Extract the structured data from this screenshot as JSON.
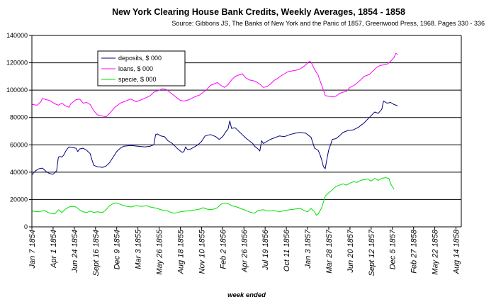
{
  "chart_data": {
    "type": "line",
    "title": "New York Clearing House Bank Credits, Weekly Averages, 1854 - 1858",
    "subtitle": "Source: Gibbons JS, The Banks of New York and the Panic of 1857, Greenwood Press, 1968. Pages 330 - 336",
    "xlabel": "week ended",
    "ylabel": "",
    "ylim": [
      0,
      140000
    ],
    "yticks": [
      "0",
      "20000",
      "40000",
      "60000",
      "80000",
      "100000",
      "120000",
      "140000"
    ],
    "grid": "horizontal",
    "legend_position": "top-left",
    "x_tick_labels": [
      "Jan 7 1854",
      "Apr 1 1854",
      "Jun 24 1854",
      "Sept 16 1854",
      "Dec 9 1854",
      "Mar 3 1855",
      "May 26 1855",
      "Aug 18 1855",
      "Nov 10 1855",
      "Feb 2 1856",
      "Apr 26 1856",
      "Jul 19 1856",
      "Oct 11 1856",
      "Jan 3 1857",
      "Mar 28 1857",
      "Jun 20 1857",
      "Sept 12 1857",
      "Dec 5 1857",
      "Feb 27 1858",
      "May 22 1858",
      "Aug 14 1858"
    ],
    "x_tick_weeks": [
      0,
      12,
      24,
      36,
      48,
      60,
      72,
      84,
      96,
      108,
      120,
      132,
      144,
      156,
      168,
      180,
      192,
      204,
      216,
      228,
      240
    ],
    "x_range_weeks": [
      0,
      243
    ],
    "series": [
      {
        "name": "deposits, $ 000",
        "color": "#000080",
        "points": [
          [
            0,
            38000
          ],
          [
            2,
            41000
          ],
          [
            4,
            42500
          ],
          [
            6,
            43000
          ],
          [
            8,
            40500
          ],
          [
            10,
            39000
          ],
          [
            12,
            38500
          ],
          [
            14,
            41000
          ],
          [
            15,
            51000
          ],
          [
            16,
            51500
          ],
          [
            17,
            51000
          ],
          [
            18,
            52500
          ],
          [
            19,
            55000
          ],
          [
            20,
            57000
          ],
          [
            21,
            58500
          ],
          [
            23,
            58000
          ],
          [
            25,
            57500
          ],
          [
            26,
            55000
          ],
          [
            27,
            57000
          ],
          [
            29,
            57500
          ],
          [
            31,
            56000
          ],
          [
            33,
            53500
          ],
          [
            34,
            49000
          ],
          [
            35,
            45000
          ],
          [
            37,
            44000
          ],
          [
            40,
            43500
          ],
          [
            42,
            44500
          ],
          [
            44,
            47000
          ],
          [
            46,
            51000
          ],
          [
            48,
            55000
          ],
          [
            50,
            57500
          ],
          [
            52,
            59000
          ],
          [
            56,
            59500
          ],
          [
            60,
            59000
          ],
          [
            64,
            58500
          ],
          [
            67,
            59000
          ],
          [
            69,
            60000
          ],
          [
            70,
            67500
          ],
          [
            71,
            68000
          ],
          [
            73,
            66500
          ],
          [
            75,
            66000
          ],
          [
            77,
            63000
          ],
          [
            79,
            61500
          ],
          [
            81,
            59000
          ],
          [
            83,
            56500
          ],
          [
            85,
            54500
          ],
          [
            86,
            55000
          ],
          [
            87,
            58500
          ],
          [
            88,
            56500
          ],
          [
            90,
            57000
          ],
          [
            94,
            60000
          ],
          [
            96,
            62500
          ],
          [
            98,
            66500
          ],
          [
            101,
            67500
          ],
          [
            104,
            66000
          ],
          [
            106,
            64000
          ],
          [
            108,
            66000
          ],
          [
            110,
            70000
          ],
          [
            111,
            71500
          ],
          [
            112,
            77500
          ],
          [
            113,
            72000
          ],
          [
            115,
            72500
          ],
          [
            117,
            70000
          ],
          [
            119,
            67500
          ],
          [
            121,
            65000
          ],
          [
            123,
            63000
          ],
          [
            125,
            61000
          ],
          [
            126,
            59000
          ],
          [
            128,
            57000
          ],
          [
            129,
            55500
          ],
          [
            130,
            63000
          ],
          [
            131,
            61000
          ],
          [
            133,
            62500
          ],
          [
            135,
            64000
          ],
          [
            137,
            65000
          ],
          [
            140,
            66500
          ],
          [
            143,
            66000
          ],
          [
            146,
            67500
          ],
          [
            149,
            68500
          ],
          [
            152,
            69000
          ],
          [
            155,
            68500
          ],
          [
            157,
            66500
          ],
          [
            158,
            65500
          ],
          [
            160,
            57500
          ],
          [
            162,
            56000
          ],
          [
            163,
            53000
          ],
          [
            164,
            49000
          ],
          [
            165,
            44000
          ],
          [
            166,
            42500
          ],
          [
            167,
            50000
          ],
          [
            168,
            56500
          ],
          [
            169,
            60000
          ],
          [
            170,
            64000
          ],
          [
            172,
            64500
          ],
          [
            174,
            66500
          ],
          [
            176,
            69000
          ],
          [
            179,
            70500
          ],
          [
            182,
            71000
          ],
          [
            185,
            73000
          ],
          [
            188,
            76000
          ],
          [
            191,
            80000
          ],
          [
            194,
            84000
          ],
          [
            196,
            83000
          ],
          [
            198,
            86000
          ],
          [
            199,
            92000
          ],
          [
            201,
            90500
          ],
          [
            203,
            91000
          ],
          [
            205,
            89500
          ],
          [
            207,
            88500
          ]
        ]
      },
      {
        "name": "loans, $ 000",
        "color": "#ff00ff",
        "points": [
          [
            0,
            89500
          ],
          [
            3,
            89000
          ],
          [
            5,
            91500
          ],
          [
            6,
            94000
          ],
          [
            8,
            93000
          ],
          [
            10,
            92500
          ],
          [
            13,
            90000
          ],
          [
            15,
            89000
          ],
          [
            17,
            90500
          ],
          [
            19,
            88500
          ],
          [
            21,
            87500
          ],
          [
            22,
            90000
          ],
          [
            25,
            93000
          ],
          [
            27,
            93500
          ],
          [
            29,
            90500
          ],
          [
            31,
            91000
          ],
          [
            33,
            89500
          ],
          [
            35,
            85000
          ],
          [
            37,
            82000
          ],
          [
            40,
            81000
          ],
          [
            42,
            80500
          ],
          [
            44,
            83000
          ],
          [
            47,
            87500
          ],
          [
            50,
            90500
          ],
          [
            53,
            92000
          ],
          [
            56,
            93500
          ],
          [
            59,
            91500
          ],
          [
            61,
            92500
          ],
          [
            64,
            94000
          ],
          [
            67,
            96000
          ],
          [
            69,
            98500
          ],
          [
            72,
            100000
          ],
          [
            74,
            101000
          ],
          [
            76,
            100500
          ],
          [
            78,
            98500
          ],
          [
            80,
            96500
          ],
          [
            82,
            94500
          ],
          [
            84,
            92500
          ],
          [
            86,
            92000
          ],
          [
            89,
            93000
          ],
          [
            92,
            95000
          ],
          [
            95,
            96500
          ],
          [
            97,
            98500
          ],
          [
            99,
            100500
          ],
          [
            101,
            103500
          ],
          [
            103,
            104500
          ],
          [
            105,
            105500
          ],
          [
            107,
            103500
          ],
          [
            109,
            102000
          ],
          [
            111,
            104000
          ],
          [
            113,
            107500
          ],
          [
            115,
            110000
          ],
          [
            117,
            111000
          ],
          [
            119,
            112000
          ],
          [
            121,
            109000
          ],
          [
            123,
            107500
          ],
          [
            125,
            107000
          ],
          [
            127,
            106000
          ],
          [
            129,
            104500
          ],
          [
            131,
            102000
          ],
          [
            133,
            102500
          ],
          [
            135,
            104500
          ],
          [
            137,
            107000
          ],
          [
            139,
            108500
          ],
          [
            141,
            110500
          ],
          [
            143,
            112000
          ],
          [
            145,
            113500
          ],
          [
            147,
            114000
          ],
          [
            149,
            114500
          ],
          [
            151,
            115000
          ],
          [
            153,
            116500
          ],
          [
            155,
            118500
          ],
          [
            157,
            121000
          ],
          [
            158,
            120500
          ],
          [
            160,
            115000
          ],
          [
            162,
            111000
          ],
          [
            163,
            107000
          ],
          [
            165,
            100000
          ],
          [
            166,
            96000
          ],
          [
            168,
            95500
          ],
          [
            170,
            95000
          ],
          [
            172,
            95500
          ],
          [
            174,
            97500
          ],
          [
            176,
            98500
          ],
          [
            178,
            99000
          ],
          [
            180,
            102000
          ],
          [
            183,
            104000
          ],
          [
            186,
            107500
          ],
          [
            188,
            110000
          ],
          [
            191,
            111500
          ],
          [
            193,
            114000
          ],
          [
            195,
            116500
          ],
          [
            197,
            118000
          ],
          [
            199,
            118500
          ],
          [
            201,
            119000
          ],
          [
            203,
            121000
          ],
          [
            205,
            124000
          ],
          [
            206,
            127000
          ],
          [
            207,
            126000
          ]
        ]
      },
      {
        "name": "specie, $ 000",
        "color": "#00e000",
        "points": [
          [
            0,
            11500
          ],
          [
            4,
            11000
          ],
          [
            7,
            12000
          ],
          [
            10,
            10000
          ],
          [
            13,
            9500
          ],
          [
            15,
            12500
          ],
          [
            17,
            10500
          ],
          [
            19,
            13000
          ],
          [
            21,
            14500
          ],
          [
            23,
            15000
          ],
          [
            25,
            14500
          ],
          [
            27,
            12500
          ],
          [
            29,
            11000
          ],
          [
            31,
            10500
          ],
          [
            33,
            11500
          ],
          [
            35,
            10500
          ],
          [
            37,
            11000
          ],
          [
            40,
            10500
          ],
          [
            42,
            12500
          ],
          [
            44,
            15500
          ],
          [
            46,
            17000
          ],
          [
            48,
            17500
          ],
          [
            50,
            16500
          ],
          [
            52,
            15500
          ],
          [
            54,
            15000
          ],
          [
            56,
            14500
          ],
          [
            59,
            15500
          ],
          [
            62,
            15000
          ],
          [
            65,
            15500
          ],
          [
            67,
            14500
          ],
          [
            69,
            14000
          ],
          [
            71,
            13500
          ],
          [
            73,
            12500
          ],
          [
            75,
            12000
          ],
          [
            77,
            11500
          ],
          [
            79,
            10500
          ],
          [
            81,
            10000
          ],
          [
            84,
            11000
          ],
          [
            87,
            11500
          ],
          [
            90,
            12000
          ],
          [
            93,
            12500
          ],
          [
            95,
            13000
          ],
          [
            97,
            14000
          ],
          [
            99,
            13000
          ],
          [
            101,
            12500
          ],
          [
            103,
            13000
          ],
          [
            105,
            14000
          ],
          [
            107,
            16500
          ],
          [
            109,
            17500
          ],
          [
            111,
            17000
          ],
          [
            113,
            15500
          ],
          [
            116,
            14500
          ],
          [
            118,
            13500
          ],
          [
            120,
            12500
          ],
          [
            122,
            11500
          ],
          [
            124,
            10500
          ],
          [
            126,
            10000
          ],
          [
            128,
            12000
          ],
          [
            131,
            12500
          ],
          [
            134,
            11500
          ],
          [
            137,
            12000
          ],
          [
            140,
            11000
          ],
          [
            143,
            12000
          ],
          [
            146,
            12500
          ],
          [
            149,
            13000
          ],
          [
            152,
            13500
          ],
          [
            154,
            12000
          ],
          [
            156,
            11000
          ],
          [
            158,
            13500
          ],
          [
            160,
            11000
          ],
          [
            161,
            8500
          ],
          [
            162,
            9500
          ],
          [
            164,
            14000
          ],
          [
            166,
            22500
          ],
          [
            168,
            25000
          ],
          [
            170,
            27000
          ],
          [
            172,
            29500
          ],
          [
            174,
            30500
          ],
          [
            176,
            31500
          ],
          [
            178,
            30500
          ],
          [
            180,
            32000
          ],
          [
            182,
            33000
          ],
          [
            184,
            32500
          ],
          [
            186,
            34000
          ],
          [
            188,
            34500
          ],
          [
            190,
            35000
          ],
          [
            192,
            33500
          ],
          [
            194,
            35500
          ],
          [
            196,
            34000
          ],
          [
            198,
            35500
          ],
          [
            200,
            36000
          ],
          [
            202,
            35500
          ],
          [
            203,
            31500
          ],
          [
            205,
            27500
          ]
        ]
      }
    ]
  }
}
